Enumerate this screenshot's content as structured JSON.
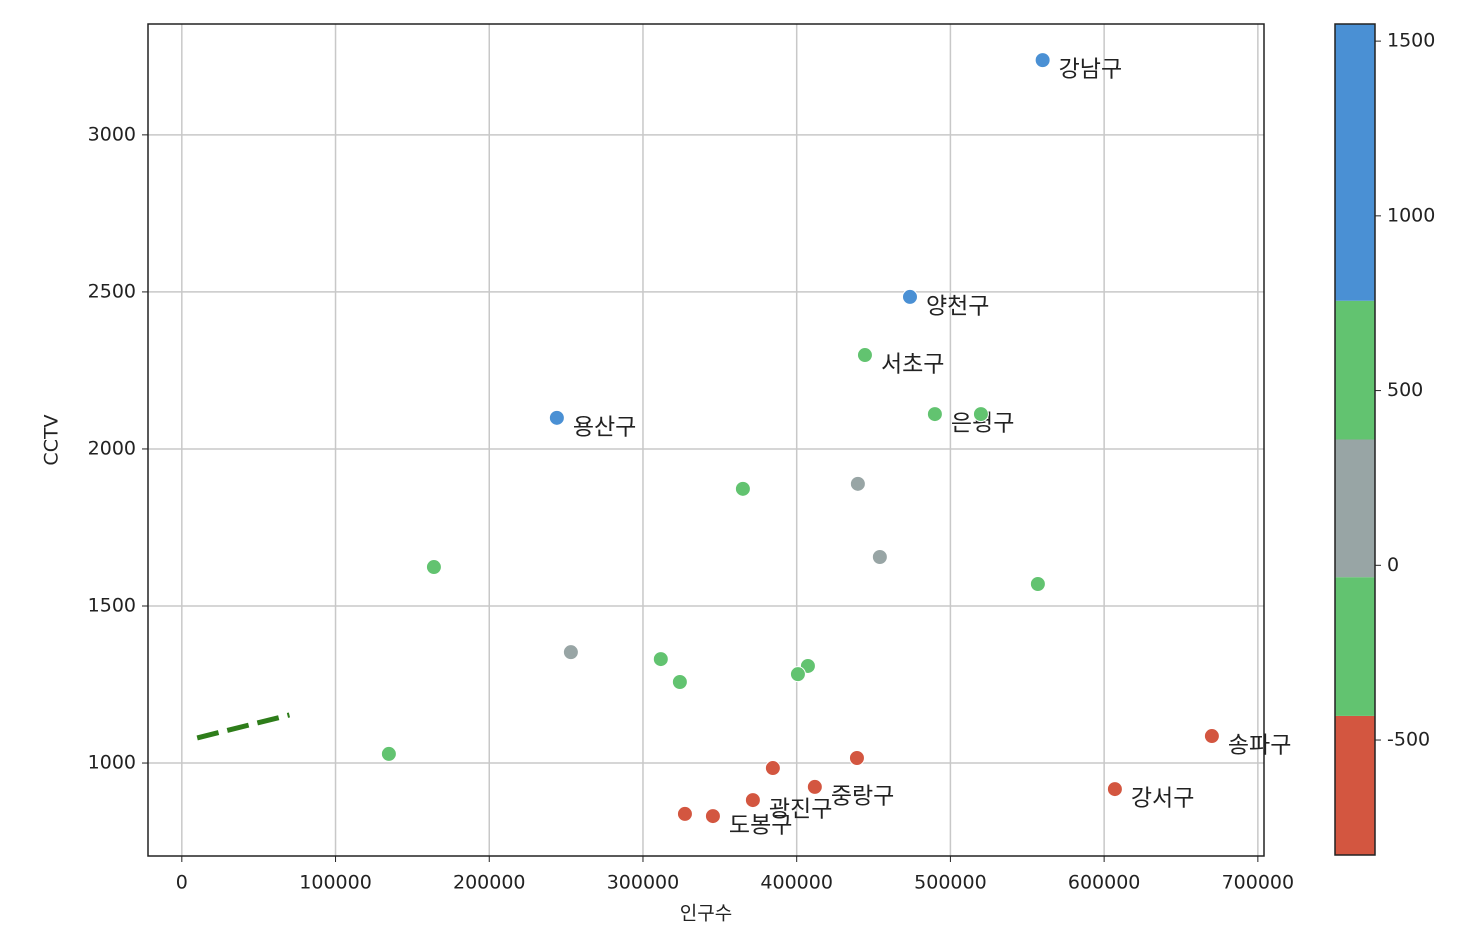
{
  "chart_data": {
    "type": "scatter",
    "xlabel": "인구수",
    "ylabel": "CCTV",
    "xlim": [
      -22000,
      704000
    ],
    "ylim": [
      704,
      3353
    ],
    "xticks": [
      0,
      100000,
      200000,
      300000,
      400000,
      500000,
      600000,
      700000
    ],
    "yticks": [
      1000,
      1500,
      2000,
      2500,
      3000
    ],
    "grid": true,
    "x": [
      560000,
      473700,
      444400,
      489900,
      519850,
      243980,
      365000,
      439800,
      454100,
      164000,
      556900,
      253100,
      311600,
      324000,
      407300,
      400800,
      134700,
      670100,
      607000,
      439200,
      384500,
      411800,
      371500,
      327300,
      345500
    ],
    "y": [
      3238,
      2484,
      2299,
      2111,
      2111,
      2099,
      1873,
      1889,
      1656,
      1624,
      1570,
      1353,
      1331,
      1258,
      1309,
      1283,
      1029,
      1086,
      917,
      1016,
      984,
      924,
      882,
      838,
      831
    ],
    "c": [
      1100,
      1100,
      550,
      550,
      550,
      1100,
      -200,
      150,
      150,
      -200,
      550,
      150,
      -200,
      -200,
      -200,
      -200,
      -200,
      -600,
      -600,
      -600,
      -600,
      -600,
      -600,
      -600,
      -600
    ],
    "labels": [
      "강남구",
      "양천구",
      "서초구",
      "은평구",
      null,
      "용산구",
      null,
      null,
      null,
      null,
      null,
      null,
      null,
      null,
      null,
      null,
      null,
      "송파구",
      "강서구",
      null,
      null,
      "중랑구",
      "광진구",
      null,
      "도봉구"
    ],
    "colorbar": {
      "bounds": [
        -829,
        -431,
        -34,
        360,
        757,
        1549
      ],
      "colors": [
        "#d35640",
        "#62c370",
        "#98a5a5",
        "#62c370",
        "#4a90d4"
      ],
      "ticks": [
        -500,
        0,
        500,
        1000,
        1500
      ]
    },
    "fit_line": {
      "x": [
        10000,
        70000
      ],
      "y": [
        1080,
        1153
      ],
      "color": "#2e7d1a"
    }
  }
}
